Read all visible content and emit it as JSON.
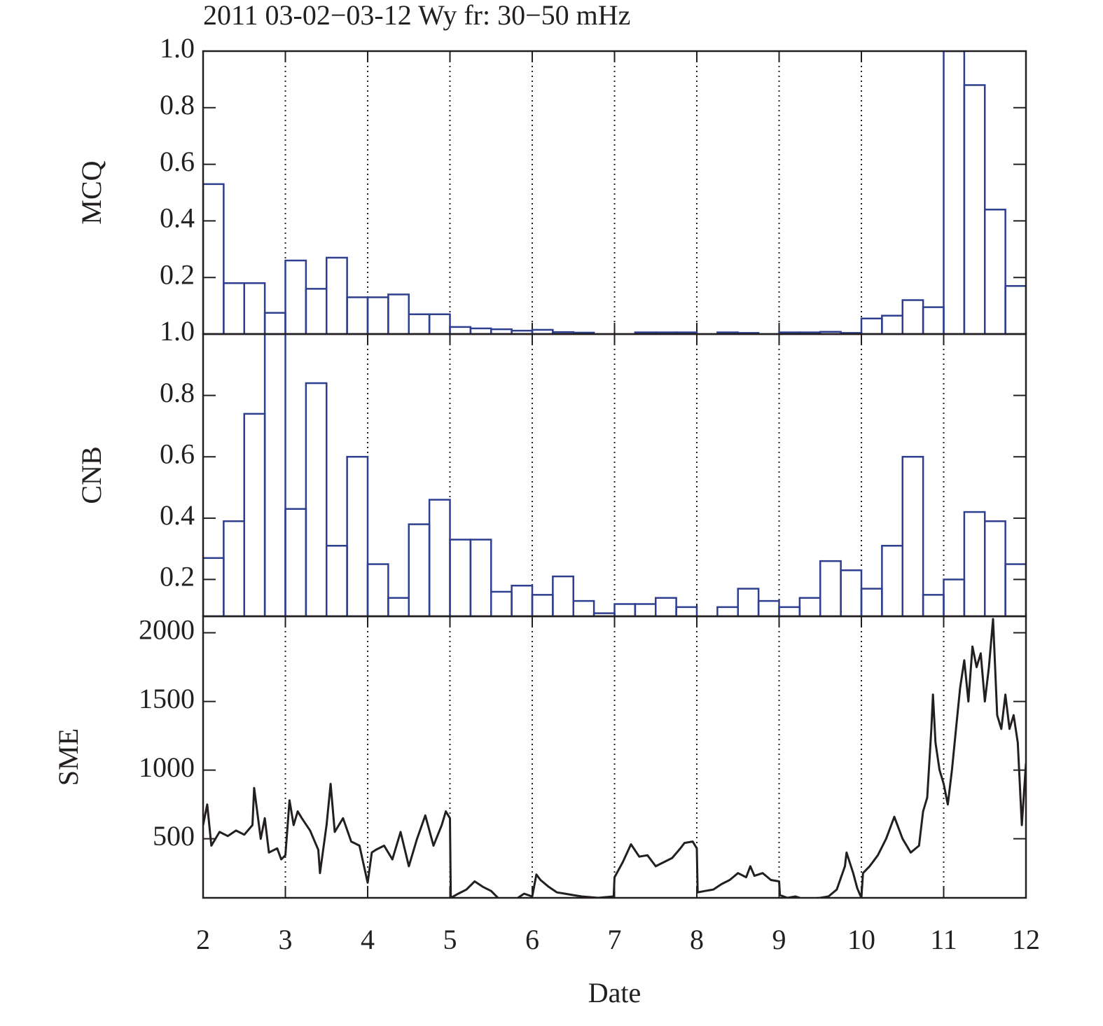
{
  "chart_data": [
    {
      "type": "histogram",
      "title": "2011 03-02−03-12 Wy fr: 30−50 mHz",
      "ylabel": "MCQ",
      "bins": [
        2,
        2.25,
        2.5,
        2.75,
        3,
        3.25,
        3.5,
        3.75,
        4,
        4.25,
        4.5,
        4.75,
        5,
        5.25,
        5.5,
        5.75,
        6,
        6.25,
        6.5,
        6.75,
        7,
        7.25,
        7.5,
        7.75,
        8,
        8.25,
        8.5,
        8.75,
        9,
        9.25,
        9.5,
        9.75,
        10,
        10.25,
        10.5,
        10.75,
        11,
        11.25,
        11.5,
        11.75,
        12
      ],
      "values": [
        0.53,
        0.18,
        0.18,
        0.075,
        0.26,
        0.16,
        0.27,
        0.13,
        0.13,
        0.14,
        0.07,
        0.07,
        0.025,
        0.02,
        0.017,
        0.012,
        0.015,
        0.007,
        0.005,
        0,
        0,
        0.006,
        0.006,
        0.006,
        0,
        0.006,
        0.004,
        0,
        0.006,
        0.006,
        0.008,
        0.004,
        0.055,
        0.065,
        0.12,
        0.095,
        1.0,
        0.88,
        0.44,
        0.17
      ],
      "color": "#2e3f8f",
      "xlim": [
        2,
        12
      ],
      "xticks": [
        2,
        3,
        4,
        5,
        6,
        7,
        8,
        9,
        10,
        11,
        12
      ],
      "ylim": [
        0,
        1
      ],
      "yticks": [
        0.2,
        0.4,
        0.6,
        0.8,
        {
          "value": 1,
          "label": "1.0"
        }
      ],
      "grid": "x"
    },
    {
      "type": "histogram",
      "ylabel": "CNB",
      "bins": [
        2,
        2.25,
        2.5,
        2.75,
        3,
        3.25,
        3.5,
        3.75,
        4,
        4.25,
        4.5,
        4.75,
        5,
        5.25,
        5.5,
        5.75,
        6,
        6.25,
        6.5,
        6.75,
        7,
        7.25,
        7.5,
        7.75,
        8,
        8.25,
        8.5,
        8.75,
        9,
        9.25,
        9.5,
        9.75,
        10,
        10.25,
        10.5,
        10.75,
        11,
        11.25,
        11.5,
        11.75,
        12
      ],
      "values": [
        0.27,
        0.39,
        0.74,
        1.0,
        0.43,
        0.84,
        0.31,
        0.6,
        0.25,
        0.14,
        0.38,
        0.46,
        0.33,
        0.33,
        0.16,
        0.18,
        0.15,
        0.21,
        0.13,
        0.09,
        0.12,
        0.12,
        0.14,
        0.11,
        null,
        0.11,
        0.17,
        0.13,
        0.11,
        0.14,
        0.26,
        0.23,
        0.17,
        0.31,
        0.6,
        0.15,
        0.2,
        0.42,
        0.39,
        0.25
      ],
      "color": "#2e3f8f",
      "xlim": [
        2,
        12
      ],
      "xticks": [
        2,
        3,
        4,
        5,
        6,
        7,
        8,
        9,
        10,
        11,
        12
      ],
      "ylim": [
        0.08,
        1
      ],
      "yticks": [
        0.2,
        0.4,
        0.6,
        0.8,
        {
          "value": 1,
          "label": "1.0"
        }
      ],
      "grid": "x"
    },
    {
      "type": "line",
      "ylabel": "SME",
      "xlabel": "Date",
      "x": [
        2.0,
        2.05,
        2.1,
        2.2,
        2.3,
        2.4,
        2.5,
        2.6,
        2.62,
        2.7,
        2.75,
        2.8,
        2.9,
        2.95,
        3.0,
        3.05,
        3.1,
        3.15,
        3.2,
        3.3,
        3.4,
        3.42,
        3.5,
        3.55,
        3.6,
        3.7,
        3.8,
        3.9,
        4.0,
        4.05,
        4.1,
        4.2,
        4.3,
        4.4,
        4.5,
        4.6,
        4.7,
        4.8,
        4.9,
        4.95,
        5.0,
        5.01,
        5.1,
        5.2,
        5.3,
        5.4,
        5.5,
        5.6,
        5.7,
        5.8,
        5.9,
        6.0,
        6.05,
        6.1,
        6.2,
        6.3,
        6.4,
        6.5,
        6.6,
        6.8,
        6.99,
        7.0,
        7.1,
        7.2,
        7.3,
        7.4,
        7.5,
        7.6,
        7.7,
        7.8,
        7.85,
        7.95,
        8.0,
        8.01,
        8.1,
        8.2,
        8.3,
        8.4,
        8.5,
        8.6,
        8.65,
        8.7,
        8.8,
        8.9,
        9.0,
        9.01,
        9.1,
        9.2,
        9.3,
        9.5,
        9.6,
        9.7,
        9.8,
        9.82,
        9.9,
        9.95,
        10.0,
        10.02,
        10.1,
        10.2,
        10.3,
        10.4,
        10.5,
        10.6,
        10.7,
        10.75,
        10.8,
        10.85,
        10.87,
        10.9,
        10.95,
        11.0,
        11.05,
        11.1,
        11.15,
        11.2,
        11.25,
        11.3,
        11.35,
        11.4,
        11.45,
        11.5,
        11.55,
        11.6,
        11.65,
        11.7,
        11.75,
        11.8,
        11.85,
        11.9,
        11.95,
        12.0
      ],
      "series": [
        {
          "name": "SME",
          "color": "#231f20",
          "values": [
            600,
            750,
            450,
            550,
            520,
            560,
            530,
            600,
            870,
            500,
            650,
            400,
            430,
            350,
            380,
            780,
            600,
            700,
            650,
            560,
            420,
            250,
            600,
            900,
            550,
            650,
            480,
            450,
            180,
            400,
            420,
            450,
            350,
            550,
            300,
            500,
            670,
            450,
            600,
            700,
            650,
            70,
            100,
            130,
            190,
            150,
            120,
            60,
            50,
            60,
            100,
            80,
            240,
            200,
            150,
            110,
            100,
            90,
            80,
            70,
            80,
            220,
            330,
            460,
            370,
            380,
            300,
            330,
            360,
            430,
            470,
            480,
            430,
            110,
            120,
            130,
            170,
            200,
            250,
            220,
            300,
            230,
            250,
            200,
            190,
            90,
            70,
            80,
            60,
            70,
            80,
            130,
            300,
            400,
            250,
            140,
            70,
            250,
            300,
            380,
            500,
            660,
            500,
            400,
            450,
            700,
            800,
            1300,
            1550,
            1200,
            1000,
            900,
            750,
            1000,
            1300,
            1600,
            1800,
            1500,
            1900,
            1750,
            1850,
            1500,
            1750,
            2100,
            1400,
            1300,
            1550,
            1300,
            1400,
            1200,
            600,
            1050
          ]
        }
      ],
      "xlim": [
        2,
        12
      ],
      "xticks": [
        2,
        3,
        4,
        5,
        6,
        7,
        8,
        9,
        10,
        11,
        12
      ],
      "ylim": [
        70,
        2120
      ],
      "yticks": [
        500,
        1000,
        1500,
        2000
      ],
      "grid": "x"
    }
  ]
}
